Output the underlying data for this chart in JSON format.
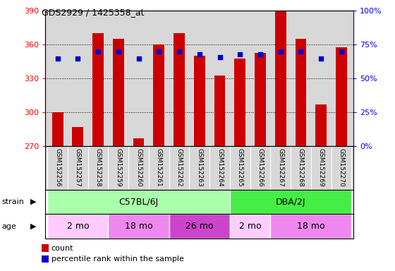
{
  "title": "GDS2929 / 1425358_at",
  "samples": [
    "GSM152256",
    "GSM152257",
    "GSM152258",
    "GSM152259",
    "GSM152260",
    "GSM152261",
    "GSM152262",
    "GSM152263",
    "GSM152264",
    "GSM152265",
    "GSM152266",
    "GSM152267",
    "GSM152268",
    "GSM152269",
    "GSM152270"
  ],
  "counts": [
    300,
    287,
    370,
    365,
    277,
    360,
    370,
    350,
    333,
    348,
    353,
    390,
    365,
    307,
    358
  ],
  "percentile_ranks": [
    65,
    65,
    70,
    70,
    65,
    70,
    70,
    68,
    66,
    68,
    68,
    70,
    70,
    65,
    70
  ],
  "y_min": 270,
  "y_max": 390,
  "y_ticks": [
    270,
    300,
    330,
    360,
    390
  ],
  "y2_ticks": [
    0,
    25,
    50,
    75,
    100
  ],
  "bar_color": "#cc0000",
  "dot_color": "#0000cc",
  "strain_groups": [
    {
      "label": "C57BL/6J",
      "start": 0,
      "end": 9,
      "color": "#aaffaa"
    },
    {
      "label": "DBA/2J",
      "start": 9,
      "end": 15,
      "color": "#44ee44"
    }
  ],
  "age_groups": [
    {
      "label": "2 mo",
      "start": 0,
      "end": 3,
      "color": "#ffccff"
    },
    {
      "label": "18 mo",
      "start": 3,
      "end": 6,
      "color": "#ee88ee"
    },
    {
      "label": "26 mo",
      "start": 6,
      "end": 9,
      "color": "#cc44cc"
    },
    {
      "label": "2 mo",
      "start": 9,
      "end": 11,
      "color": "#ffccff"
    },
    {
      "label": "18 mo",
      "start": 11,
      "end": 15,
      "color": "#ee88ee"
    }
  ],
  "strain_label": "strain",
  "age_label": "age",
  "legend_count": "count",
  "legend_percentile": "percentile rank within the sample",
  "axis_bg": "#d8d8d8",
  "fig_bg": "#ffffff"
}
